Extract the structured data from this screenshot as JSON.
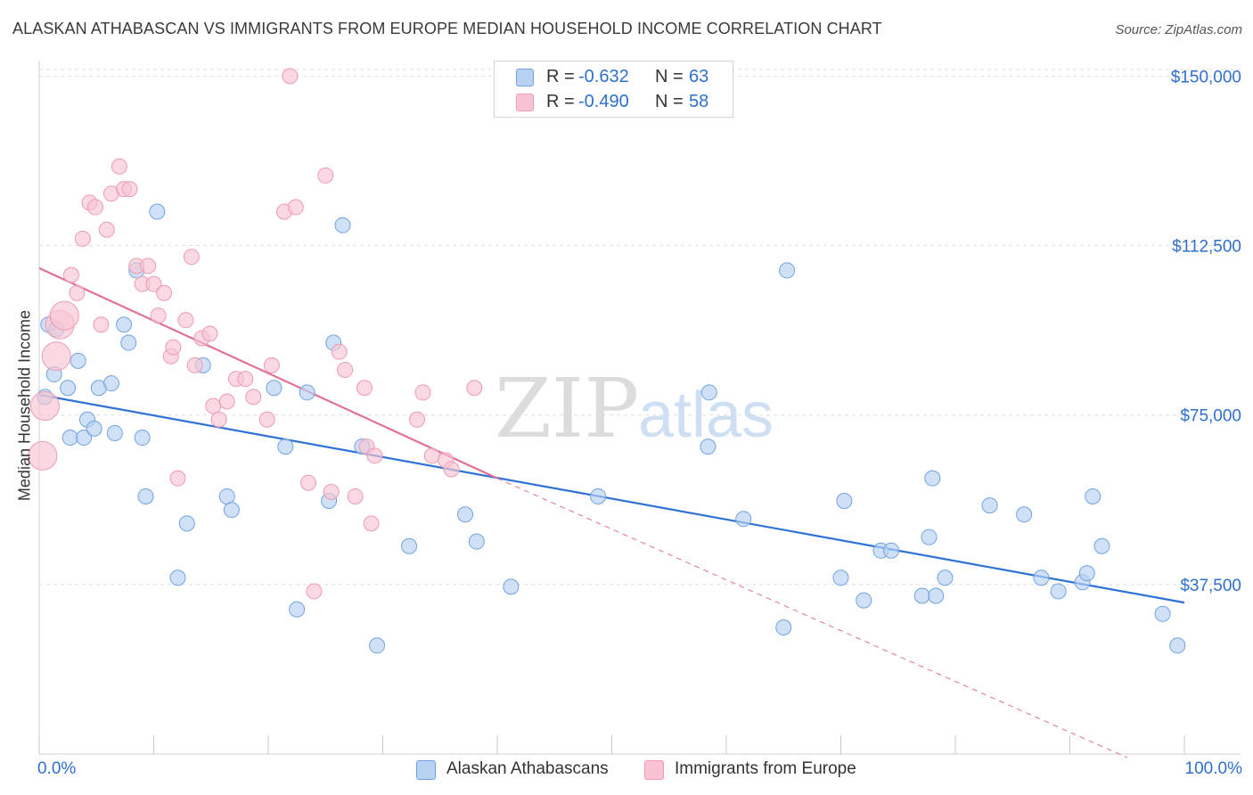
{
  "title": "ALASKAN ATHABASCAN VS IMMIGRANTS FROM EUROPE MEDIAN HOUSEHOLD INCOME CORRELATION CHART",
  "source": "Source: ZipAtlas.com",
  "watermark": {
    "zip": "ZIP",
    "atlas": "atlas"
  },
  "legend": {
    "rows": [
      {
        "r_label": "R =",
        "r_value": "-0.632",
        "n_label": "N =",
        "n_value": "63",
        "color": "#a9c8f0"
      },
      {
        "r_label": "R =",
        "r_value": "-0.490",
        "n_label": "N =",
        "n_value": "58",
        "color": "#f7b6c9"
      }
    ]
  },
  "chart_data": {
    "type": "scatter",
    "title": "ALASKAN ATHABASCAN VS IMMIGRANTS FROM EUROPE MEDIAN HOUSEHOLD INCOME CORRELATION CHART",
    "xlabel": "",
    "ylabel": "Median Household Income",
    "xlim": [
      0,
      100
    ],
    "ylim": [
      0,
      155000
    ],
    "x_tick_labels": [
      "0.0%",
      "100.0%"
    ],
    "y_ticks": [
      37500,
      75000,
      112500,
      150000
    ],
    "y_tick_labels": [
      "$37,500",
      "$75,000",
      "$112,500",
      "$150,000"
    ],
    "grid": true,
    "legend_position": "top-center",
    "series": [
      {
        "name": "Alaskan Athabascans",
        "color": "#6fa3e0",
        "fill": "#b7d1f3",
        "trend": {
          "x": [
            0,
            100
          ],
          "y": [
            79500,
            33500
          ],
          "style": "solid",
          "color": "#2f72d6"
        },
        "points": [
          [
            0.5,
            79
          ],
          [
            0.8,
            95
          ],
          [
            1.3,
            84
          ],
          [
            1.5,
            94
          ],
          [
            2.5,
            81
          ],
          [
            2.7,
            70
          ],
          [
            3.4,
            87
          ],
          [
            3.9,
            70
          ],
          [
            4.2,
            74
          ],
          [
            4.8,
            72
          ],
          [
            5.2,
            81
          ],
          [
            6.3,
            82
          ],
          [
            6.6,
            71
          ],
          [
            7.4,
            95
          ],
          [
            7.8,
            91
          ],
          [
            8.5,
            107
          ],
          [
            9.0,
            70
          ],
          [
            9.3,
            57
          ],
          [
            10.3,
            120
          ],
          [
            12.1,
            39
          ],
          [
            12.9,
            51
          ],
          [
            14.3,
            86
          ],
          [
            16.4,
            57
          ],
          [
            16.8,
            54
          ],
          [
            20.5,
            81
          ],
          [
            21.5,
            68
          ],
          [
            22.5,
            32
          ],
          [
            23.4,
            80
          ],
          [
            25.3,
            56
          ],
          [
            25.7,
            91
          ],
          [
            26.5,
            117
          ],
          [
            28.2,
            68
          ],
          [
            29.5,
            24
          ],
          [
            32.3,
            46
          ],
          [
            37.2,
            53
          ],
          [
            38.2,
            47
          ],
          [
            41.2,
            37
          ],
          [
            48.8,
            57
          ],
          [
            58.4,
            68
          ],
          [
            58.5,
            80
          ],
          [
            61.5,
            52
          ],
          [
            65.0,
            28
          ],
          [
            65.3,
            107
          ],
          [
            70.0,
            39
          ],
          [
            70.3,
            56
          ],
          [
            72.0,
            34
          ],
          [
            73.5,
            45
          ],
          [
            74.4,
            45
          ],
          [
            77.1,
            35
          ],
          [
            77.7,
            48
          ],
          [
            78.0,
            61
          ],
          [
            78.3,
            35
          ],
          [
            79.1,
            39
          ],
          [
            83.0,
            55
          ],
          [
            86.0,
            53
          ],
          [
            87.5,
            39
          ],
          [
            89.0,
            36
          ],
          [
            91.1,
            38
          ],
          [
            91.5,
            40
          ],
          [
            92.0,
            57
          ],
          [
            92.8,
            46
          ],
          [
            98.1,
            31
          ],
          [
            99.4,
            24
          ]
        ]
      },
      {
        "name": "Immigrants from Europe",
        "color": "#ee9ab3",
        "fill": "#f8c4d3",
        "trend": {
          "x": [
            0,
            40,
            95
          ],
          "y": [
            107500,
            61000,
            -3000
          ],
          "style": "solid-then-dashed",
          "color": "#e07095"
        },
        "points": [
          [
            0.3,
            66
          ],
          [
            0.5,
            77
          ],
          [
            1.5,
            88
          ],
          [
            1.8,
            95
          ],
          [
            2.2,
            97
          ],
          [
            2.8,
            106
          ],
          [
            3.3,
            102
          ],
          [
            3.8,
            114
          ],
          [
            4.4,
            122
          ],
          [
            4.9,
            121
          ],
          [
            5.4,
            95
          ],
          [
            5.9,
            116
          ],
          [
            6.3,
            124
          ],
          [
            7.0,
            130
          ],
          [
            7.4,
            125
          ],
          [
            7.9,
            125
          ],
          [
            8.5,
            108
          ],
          [
            9.0,
            104
          ],
          [
            9.5,
            108
          ],
          [
            10.0,
            104
          ],
          [
            10.4,
            97
          ],
          [
            10.9,
            102
          ],
          [
            11.5,
            88
          ],
          [
            11.7,
            90
          ],
          [
            12.1,
            61
          ],
          [
            12.8,
            96
          ],
          [
            13.3,
            110
          ],
          [
            13.6,
            86
          ],
          [
            14.2,
            92
          ],
          [
            14.9,
            93
          ],
          [
            15.2,
            77
          ],
          [
            15.7,
            74
          ],
          [
            16.4,
            78
          ],
          [
            17.2,
            83
          ],
          [
            18.0,
            83
          ],
          [
            18.7,
            79
          ],
          [
            19.9,
            74
          ],
          [
            20.3,
            86
          ],
          [
            21.4,
            120
          ],
          [
            21.9,
            150
          ],
          [
            22.4,
            121
          ],
          [
            23.5,
            60
          ],
          [
            24.0,
            36
          ],
          [
            25.0,
            128
          ],
          [
            25.5,
            58
          ],
          [
            26.2,
            89
          ],
          [
            26.7,
            85
          ],
          [
            27.6,
            57
          ],
          [
            28.6,
            68
          ],
          [
            28.4,
            81
          ],
          [
            29.0,
            51
          ],
          [
            29.3,
            66
          ],
          [
            33.0,
            74
          ],
          [
            33.5,
            80
          ],
          [
            34.3,
            66
          ],
          [
            35.5,
            65
          ],
          [
            36.0,
            63
          ],
          [
            38.0,
            81
          ]
        ]
      }
    ]
  }
}
